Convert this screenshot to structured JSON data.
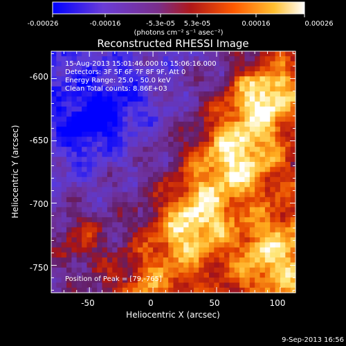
{
  "colorbar": {
    "tick_labels": [
      "-0.00026",
      "-0.00016",
      "-5.3e-05",
      "5.3e-05",
      "0.00016",
      "0.00026"
    ],
    "unit_label": "(photons cm⁻² s⁻¹ asec⁻²)",
    "colors": [
      "#0000ff",
      "#7a3fd0",
      "#8a2a8a",
      "#b01010",
      "#ff6000",
      "#ffd040",
      "#ffffff"
    ]
  },
  "chart_data": {
    "type": "heatmap",
    "title": "Reconstructed RHESSI Image",
    "xlabel": "Heliocentric X (arcsec)",
    "ylabel": "Heliocentric Y (arcsec)",
    "xlim": [
      -80,
      112
    ],
    "ylim": [
      -772,
      -578
    ],
    "x_ticks": [
      -50,
      0,
      50,
      100
    ],
    "y_ticks": [
      -600,
      -650,
      -700,
      -750
    ],
    "x_tick_labels": [
      "-50",
      "0",
      "50",
      "100"
    ],
    "y_tick_labels": [
      "-600",
      "-650",
      "-700",
      "-750"
    ],
    "value_range": [
      -0.00026,
      0.00026
    ],
    "grid": false,
    "info_lines": [
      "15-Aug-2013 15:01:46.000 to 15:06:16.000",
      "Detectors: 3F 5F 6F 7F 8F 9F, Att 0",
      "Energy Range: 25.0 - 50.0 keV",
      "Clean    Total counts: 8.86E+03"
    ],
    "peak_label": "Position of Peak = [79,-765]",
    "peak": [
      79,
      -765
    ]
  },
  "timestamp": "9-Sep-2013 16:56"
}
